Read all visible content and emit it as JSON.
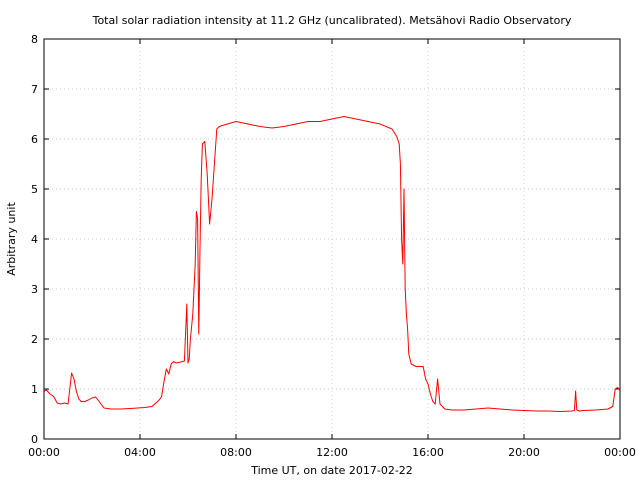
{
  "chart_data": {
    "type": "line",
    "title": "Total solar radiation intensity at 11.2 GHz (uncalibrated). Metsähovi Radio Observatory",
    "xlabel": "Time UT, on date 2017-02-22",
    "ylabel": "Arbitrary unit",
    "xlim": [
      0,
      24
    ],
    "ylim": [
      0,
      8
    ],
    "x_ticks": [
      0,
      4,
      8,
      12,
      16,
      20,
      24
    ],
    "x_tick_labels": [
      "00:00",
      "04:00",
      "08:00",
      "12:00",
      "16:00",
      "20:00",
      "00:00"
    ],
    "y_ticks": [
      0,
      1,
      2,
      3,
      4,
      5,
      6,
      7,
      8
    ],
    "y_tick_labels": [
      "0",
      "1",
      "2",
      "3",
      "4",
      "5",
      "6",
      "7",
      "8"
    ],
    "grid": true,
    "line_color": "#ff0000",
    "series": [
      {
        "x": [
          0.0,
          0.1,
          0.25,
          0.4,
          0.55,
          0.7,
          0.85,
          1.0,
          1.1,
          1.15,
          1.25,
          1.35,
          1.45,
          1.55,
          1.7,
          1.85,
          2.0,
          2.15,
          2.3,
          2.5,
          2.8,
          3.2,
          3.6,
          3.9,
          4.2,
          4.5,
          4.8,
          4.9,
          5.0,
          5.1,
          5.2,
          5.3,
          5.4,
          5.5,
          5.7,
          5.85,
          5.95,
          6.0,
          6.05,
          6.1,
          6.2,
          6.3,
          6.35,
          6.4,
          6.45,
          6.5,
          6.55,
          6.6,
          6.7,
          6.8,
          6.9,
          7.0,
          7.1,
          7.2,
          7.3,
          7.5,
          8.0,
          8.5,
          9.0,
          9.5,
          10.0,
          10.5,
          11.0,
          11.5,
          12.0,
          12.5,
          13.0,
          13.5,
          14.0,
          14.5,
          14.7,
          14.8,
          14.85,
          14.9,
          14.95,
          15.0,
          15.05,
          15.1,
          15.15,
          15.2,
          15.3,
          15.5,
          15.8,
          15.9,
          16.0,
          16.1,
          16.2,
          16.3,
          16.4,
          16.5,
          16.7,
          17.0,
          17.5,
          18.0,
          18.5,
          19.0,
          19.5,
          20.0,
          20.5,
          21.0,
          21.5,
          22.0,
          22.1,
          22.15,
          22.2,
          22.25,
          22.3,
          22.5,
          23.0,
          23.5,
          23.7,
          23.8,
          23.9,
          24.0
        ],
        "y": [
          0.95,
          0.98,
          0.9,
          0.85,
          0.72,
          0.7,
          0.72,
          0.7,
          1.1,
          1.32,
          1.2,
          0.95,
          0.8,
          0.75,
          0.75,
          0.78,
          0.82,
          0.84,
          0.75,
          0.62,
          0.6,
          0.6,
          0.61,
          0.62,
          0.63,
          0.65,
          0.78,
          0.85,
          1.15,
          1.4,
          1.3,
          1.5,
          1.55,
          1.52,
          1.54,
          1.56,
          2.7,
          1.52,
          1.6,
          2.0,
          2.5,
          3.5,
          4.55,
          4.4,
          2.1,
          3.8,
          5.2,
          5.9,
          5.95,
          5.3,
          4.3,
          4.8,
          5.5,
          6.2,
          6.25,
          6.28,
          6.35,
          6.3,
          6.25,
          6.22,
          6.25,
          6.3,
          6.35,
          6.35,
          6.4,
          6.45,
          6.4,
          6.35,
          6.3,
          6.2,
          6.05,
          5.9,
          5.5,
          4.0,
          3.5,
          5.0,
          3.0,
          2.5,
          2.2,
          1.7,
          1.5,
          1.45,
          1.45,
          1.2,
          1.1,
          0.9,
          0.75,
          0.7,
          1.2,
          0.7,
          0.6,
          0.58,
          0.58,
          0.6,
          0.62,
          0.6,
          0.58,
          0.57,
          0.56,
          0.56,
          0.55,
          0.56,
          0.57,
          0.96,
          0.58,
          0.57,
          0.56,
          0.57,
          0.58,
          0.6,
          0.65,
          1.0,
          1.03,
          0.98
        ]
      }
    ]
  }
}
